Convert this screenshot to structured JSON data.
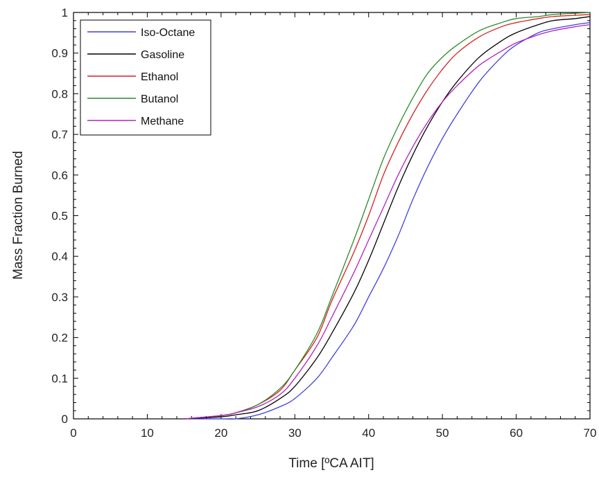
{
  "chart_data": {
    "type": "line",
    "title": "",
    "xlabel": "Time [ºCA AIT]",
    "ylabel": "Mass Fraction Burned",
    "xlim": [
      0,
      70
    ],
    "ylim": [
      0,
      1
    ],
    "xticks": [
      "0",
      "10",
      "20",
      "30",
      "40",
      "50",
      "60",
      "70"
    ],
    "yticks": [
      "0",
      "0.1",
      "0.2",
      "0.3",
      "0.4",
      "0.5",
      "0.6",
      "0.7",
      "0.8",
      "0.9",
      "1"
    ],
    "grid": false,
    "legend_position": "top-left",
    "x": [
      15,
      20,
      22,
      25,
      28,
      30,
      33,
      35,
      38,
      40,
      42,
      44,
      46,
      48,
      50,
      52,
      55,
      58,
      60,
      63,
      65,
      68,
      70
    ],
    "series": [
      {
        "name": "Iso-Octane",
        "color": "#3f3fe0",
        "values": [
          0.0,
          0.0,
          0.0,
          0.01,
          0.03,
          0.05,
          0.1,
          0.15,
          0.23,
          0.3,
          0.37,
          0.45,
          0.54,
          0.62,
          0.69,
          0.75,
          0.83,
          0.89,
          0.92,
          0.95,
          0.96,
          0.97,
          0.975
        ]
      },
      {
        "name": "Gasoline",
        "color": "#000000",
        "values": [
          0.0,
          0.005,
          0.01,
          0.02,
          0.05,
          0.08,
          0.15,
          0.21,
          0.31,
          0.39,
          0.48,
          0.57,
          0.65,
          0.72,
          0.78,
          0.83,
          0.89,
          0.93,
          0.95,
          0.97,
          0.98,
          0.985,
          0.99
        ]
      },
      {
        "name": "Ethanol",
        "color": "#d42020",
        "values": [
          0.0,
          0.008,
          0.015,
          0.035,
          0.07,
          0.12,
          0.2,
          0.29,
          0.41,
          0.5,
          0.6,
          0.68,
          0.75,
          0.81,
          0.86,
          0.9,
          0.94,
          0.965,
          0.975,
          0.985,
          0.99,
          0.993,
          0.995
        ]
      },
      {
        "name": "Butanol",
        "color": "#2a8a2a",
        "values": [
          0.0,
          0.008,
          0.015,
          0.035,
          0.075,
          0.12,
          0.21,
          0.3,
          0.44,
          0.54,
          0.64,
          0.72,
          0.79,
          0.85,
          0.89,
          0.92,
          0.955,
          0.975,
          0.985,
          0.99,
          0.995,
          0.998,
          1.0
        ]
      },
      {
        "name": "Methane",
        "color": "#b020c0",
        "values": [
          0.0,
          0.008,
          0.015,
          0.03,
          0.06,
          0.1,
          0.18,
          0.25,
          0.36,
          0.44,
          0.52,
          0.6,
          0.67,
          0.73,
          0.78,
          0.82,
          0.87,
          0.905,
          0.925,
          0.945,
          0.955,
          0.965,
          0.97
        ]
      }
    ]
  }
}
